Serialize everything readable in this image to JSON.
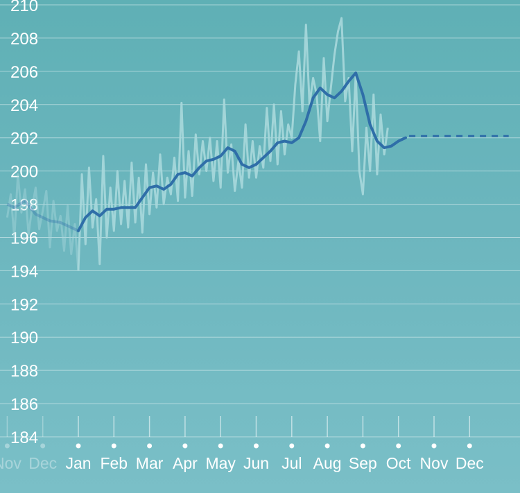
{
  "colors": {
    "background_top": "#5fb0b5",
    "background_bottom": "#7abfc7",
    "daily_line": "#a8d8dc",
    "trend_line": "#2f6ea8",
    "gridline": "#ffffff",
    "text": "#ffffff"
  },
  "chart_data": {
    "type": "line",
    "ylim": [
      184,
      210
    ],
    "grid": true,
    "y_ticks": [
      "184",
      "186",
      "188",
      "190",
      "192",
      "194",
      "196",
      "198",
      "200",
      "202",
      "204",
      "206",
      "208",
      "210"
    ],
    "x_tick_labels_previous": [
      "Nov",
      "Dec"
    ],
    "x_tick_labels": [
      "Jan",
      "Feb",
      "Mar",
      "Apr",
      "May",
      "Jun",
      "Jul",
      "Aug",
      "Sep",
      "Oct",
      "Nov",
      "Dec"
    ],
    "months_previous_x": [
      -2,
      -1
    ],
    "x_unit": "months from January (0 = Jan 1)",
    "series": [
      {
        "role": "daily",
        "points": [
          [
            -2.0,
            197.2
          ],
          [
            -1.9,
            198.6
          ],
          [
            -1.8,
            196.0
          ],
          [
            -1.7,
            199.8
          ],
          [
            -1.6,
            197.5
          ],
          [
            -1.5,
            198.9
          ],
          [
            -1.4,
            196.2
          ],
          [
            -1.3,
            197.8
          ],
          [
            -1.2,
            199.0
          ],
          [
            -1.1,
            196.5
          ],
          [
            -1.0,
            197.6
          ],
          [
            -0.9,
            198.8
          ],
          [
            -0.8,
            195.4
          ],
          [
            -0.7,
            198.2
          ],
          [
            -0.6,
            196.4
          ],
          [
            -0.5,
            197.3
          ],
          [
            -0.4,
            195.2
          ],
          [
            -0.3,
            197.9
          ],
          [
            -0.2,
            195.0
          ],
          [
            -0.1,
            196.8
          ],
          [
            0.0,
            194.0
          ],
          [
            0.1,
            199.8
          ],
          [
            0.2,
            195.6
          ],
          [
            0.3,
            200.2
          ],
          [
            0.4,
            196.6
          ],
          [
            0.5,
            198.3
          ],
          [
            0.6,
            194.4
          ],
          [
            0.7,
            200.9
          ],
          [
            0.8,
            196.0
          ],
          [
            0.9,
            199.0
          ],
          [
            1.0,
            196.4
          ],
          [
            1.1,
            200.0
          ],
          [
            1.2,
            196.8
          ],
          [
            1.3,
            199.4
          ],
          [
            1.4,
            196.6
          ],
          [
            1.5,
            200.5
          ],
          [
            1.6,
            196.9
          ],
          [
            1.7,
            199.6
          ],
          [
            1.8,
            196.3
          ],
          [
            1.9,
            200.4
          ],
          [
            2.0,
            197.4
          ],
          [
            2.1,
            199.9
          ],
          [
            2.2,
            197.8
          ],
          [
            2.3,
            201.0
          ],
          [
            2.4,
            198.0
          ],
          [
            2.5,
            199.6
          ],
          [
            2.6,
            198.6
          ],
          [
            2.7,
            200.8
          ],
          [
            2.8,
            198.2
          ],
          [
            2.9,
            204.1
          ],
          [
            3.0,
            198.4
          ],
          [
            3.1,
            201.2
          ],
          [
            3.2,
            198.5
          ],
          [
            3.3,
            202.2
          ],
          [
            3.4,
            199.8
          ],
          [
            3.5,
            201.8
          ],
          [
            3.6,
            200.0
          ],
          [
            3.7,
            202.0
          ],
          [
            3.8,
            199.4
          ],
          [
            3.9,
            201.8
          ],
          [
            4.0,
            199.0
          ],
          [
            4.1,
            204.3
          ],
          [
            4.2,
            199.9
          ],
          [
            4.3,
            201.6
          ],
          [
            4.4,
            198.8
          ],
          [
            4.5,
            200.6
          ],
          [
            4.6,
            199.0
          ],
          [
            4.7,
            202.8
          ],
          [
            4.8,
            199.6
          ],
          [
            4.9,
            201.8
          ],
          [
            5.0,
            199.6
          ],
          [
            5.1,
            201.5
          ],
          [
            5.2,
            200.2
          ],
          [
            5.3,
            203.8
          ],
          [
            5.4,
            200.6
          ],
          [
            5.5,
            204.0
          ],
          [
            5.6,
            200.4
          ],
          [
            5.7,
            203.6
          ],
          [
            5.8,
            201.0
          ],
          [
            5.9,
            202.8
          ],
          [
            6.0,
            202.0
          ],
          [
            6.1,
            205.2
          ],
          [
            6.2,
            207.2
          ],
          [
            6.3,
            203.6
          ],
          [
            6.4,
            208.8
          ],
          [
            6.5,
            204.0
          ],
          [
            6.6,
            205.6
          ],
          [
            6.7,
            204.6
          ],
          [
            6.8,
            201.8
          ],
          [
            6.9,
            206.8
          ],
          [
            7.0,
            203.0
          ],
          [
            7.1,
            205.0
          ],
          [
            7.2,
            207.0
          ],
          [
            7.3,
            208.4
          ],
          [
            7.4,
            209.2
          ],
          [
            7.5,
            204.2
          ],
          [
            7.6,
            205.6
          ],
          [
            7.7,
            201.2
          ],
          [
            7.8,
            205.8
          ],
          [
            7.9,
            200.0
          ],
          [
            8.0,
            198.6
          ],
          [
            8.1,
            202.6
          ],
          [
            8.2,
            200.0
          ],
          [
            8.3,
            204.6
          ],
          [
            8.4,
            199.8
          ],
          [
            8.5,
            203.4
          ],
          [
            8.6,
            201.0
          ],
          [
            8.7,
            202.6
          ]
        ]
      },
      {
        "role": "trend",
        "points": [
          [
            -2.0,
            198.0
          ],
          [
            -1.8,
            197.8
          ],
          [
            -1.5,
            198.2
          ],
          [
            -1.2,
            197.4
          ],
          [
            -0.8,
            197.0
          ],
          [
            -0.5,
            196.9
          ],
          [
            -0.2,
            196.6
          ],
          [
            0.0,
            196.4
          ],
          [
            0.2,
            197.2
          ],
          [
            0.4,
            197.6
          ],
          [
            0.6,
            197.3
          ],
          [
            0.8,
            197.7
          ],
          [
            1.0,
            197.7
          ],
          [
            1.2,
            197.8
          ],
          [
            1.4,
            197.8
          ],
          [
            1.6,
            197.8
          ],
          [
            1.8,
            198.4
          ],
          [
            2.0,
            199.0
          ],
          [
            2.2,
            199.1
          ],
          [
            2.4,
            198.9
          ],
          [
            2.6,
            199.2
          ],
          [
            2.8,
            199.8
          ],
          [
            3.0,
            199.9
          ],
          [
            3.2,
            199.7
          ],
          [
            3.4,
            200.2
          ],
          [
            3.6,
            200.6
          ],
          [
            3.8,
            200.7
          ],
          [
            4.0,
            200.9
          ],
          [
            4.2,
            201.4
          ],
          [
            4.4,
            201.2
          ],
          [
            4.6,
            200.4
          ],
          [
            4.8,
            200.2
          ],
          [
            5.0,
            200.4
          ],
          [
            5.2,
            200.8
          ],
          [
            5.4,
            201.2
          ],
          [
            5.6,
            201.7
          ],
          [
            5.8,
            201.8
          ],
          [
            6.0,
            201.7
          ],
          [
            6.2,
            202.0
          ],
          [
            6.4,
            203.0
          ],
          [
            6.6,
            204.4
          ],
          [
            6.8,
            205.0
          ],
          [
            7.0,
            204.6
          ],
          [
            7.2,
            204.4
          ],
          [
            7.4,
            204.8
          ],
          [
            7.6,
            205.4
          ],
          [
            7.8,
            205.9
          ],
          [
            8.0,
            204.6
          ],
          [
            8.2,
            202.8
          ],
          [
            8.4,
            201.8
          ],
          [
            8.6,
            201.4
          ],
          [
            8.8,
            201.5
          ],
          [
            9.0,
            201.8
          ],
          [
            9.2,
            202.0
          ]
        ]
      },
      {
        "role": "projection",
        "style": "dashed",
        "points": [
          [
            9.3,
            202.1
          ],
          [
            12.1,
            202.1
          ]
        ]
      }
    ]
  }
}
